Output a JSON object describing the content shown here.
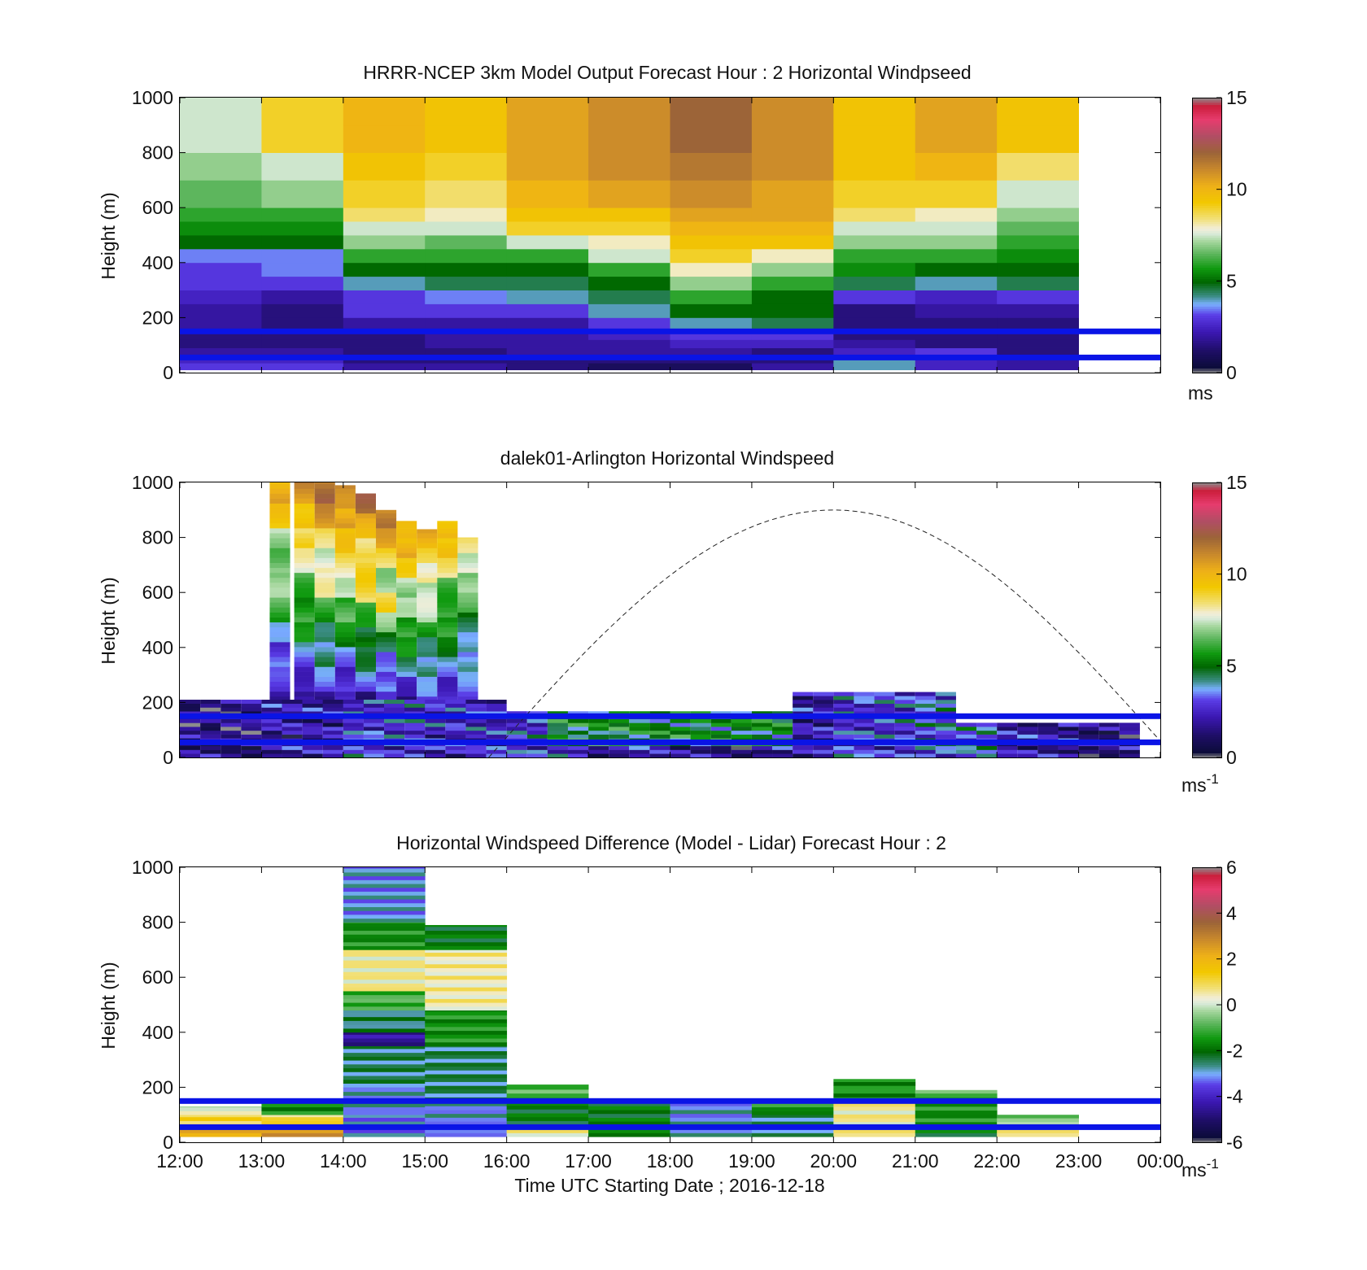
{
  "chart_data": [
    {
      "type": "heatmap",
      "title": "HRRR-NCEP 3km Model Output   Forecast Hour : 2 Horizontal Windpseed",
      "ylabel": "Height (m)",
      "ylim": [
        0,
        1000
      ],
      "yticks": [
        "0",
        "200",
        "400",
        "600",
        "800",
        "1000"
      ],
      "xlim": [
        12,
        24
      ],
      "colorbar": {
        "ticks": [
          "0",
          "5",
          "10",
          "15"
        ],
        "unit_base": "ms",
        "unit_exp": "",
        "range": [
          0,
          15
        ]
      },
      "reference_lines_m": [
        150,
        55
      ],
      "reference_line_color": "#0a14e6",
      "time_start_hours": [
        12,
        13,
        14,
        15,
        16,
        17,
        18,
        19,
        20,
        21,
        22
      ],
      "height_levels_m": [
        10,
        35,
        60,
        90,
        120,
        160,
        200,
        250,
        300,
        350,
        400,
        450,
        500,
        550,
        600,
        700,
        800,
        900,
        1000
      ],
      "windspeed": [
        [
          3,
          2.5,
          2,
          1.5,
          1.5,
          2,
          2,
          2.5,
          3,
          3,
          3.5,
          5,
          5.5,
          6,
          6.5,
          7,
          7.5,
          7.5
        ],
        [
          3,
          2.5,
          2,
          1.5,
          1.5,
          1.5,
          1.5,
          2,
          3,
          3.5,
          3.5,
          5,
          5.5,
          6,
          7,
          7.5,
          9,
          9
        ],
        [
          2,
          1.5,
          1.5,
          1.5,
          1.5,
          2,
          3,
          3,
          4,
          5,
          6,
          7,
          7.5,
          8.5,
          9,
          9.5,
          10,
          10
        ],
        [
          2,
          1.5,
          1.5,
          2,
          2,
          2,
          3,
          3.5,
          4.5,
          5,
          6,
          6.5,
          7.5,
          8,
          8.5,
          9,
          9.5,
          9.5
        ],
        [
          1.5,
          1.5,
          2,
          2,
          2,
          2,
          3,
          4,
          4.5,
          5,
          6,
          7.5,
          9,
          9.5,
          10,
          10.5,
          10.5,
          10.5
        ],
        [
          1,
          1.5,
          2,
          2,
          2.5,
          3,
          4,
          4.5,
          5,
          6,
          7.5,
          8,
          9,
          9.5,
          10.5,
          11,
          11,
          11
        ],
        [
          1,
          1.5,
          2,
          2.5,
          3,
          4,
          5,
          6,
          7,
          8,
          9,
          9.5,
          10,
          10.5,
          11,
          11.5,
          12,
          12
        ],
        [
          2,
          1.5,
          1.5,
          2.5,
          3,
          4.5,
          5,
          5,
          6,
          7,
          8,
          9.5,
          10,
          10.5,
          10.5,
          11,
          11,
          11
        ],
        [
          4,
          4,
          2.5,
          2,
          1.5,
          1.5,
          1.5,
          3,
          4.5,
          5.5,
          6,
          7,
          7.5,
          8.5,
          9,
          9.5,
          9.5,
          9.5
        ],
        [
          2.5,
          2.5,
          3,
          1.5,
          1.5,
          1.5,
          2,
          2.5,
          4,
          5,
          6,
          7,
          7.5,
          8,
          9,
          10,
          10.5,
          10.5
        ],
        [
          2,
          2,
          1.5,
          1.5,
          1.5,
          1.5,
          2,
          3,
          4.5,
          5,
          5.5,
          6,
          6.5,
          7,
          7.5,
          8.5,
          9.5,
          9.5
        ]
      ]
    },
    {
      "type": "heatmap",
      "title": "dalek01-Arlington  Horizontal Windspeed",
      "ylabel": "Height (m)",
      "ylim": [
        0,
        1000
      ],
      "yticks": [
        "0",
        "200",
        "400",
        "600",
        "800",
        "1000"
      ],
      "xlim": [
        12,
        24
      ],
      "colorbar": {
        "ticks": [
          "0",
          "5",
          "10",
          "15"
        ],
        "unit_base": "ms",
        "unit_exp": "-1",
        "range": [
          0,
          15
        ]
      },
      "reference_lines_m": [
        150,
        55
      ],
      "reference_line_color": "#0a14e6",
      "curve": {
        "style": "dashed",
        "x_hours": [
          15.78,
          20,
          24
        ],
        "y_m": [
          0,
          900,
          60
        ],
        "peak_hour": 20,
        "peak_m": 900
      },
      "columns": [
        {
          "t": 13.1,
          "top": 1000,
          "speed_profile": [
            2,
            2.5,
            3,
            4.5,
            6,
            6.5,
            7,
            7.5,
            9,
            10
          ]
        },
        {
          "t": 13.4,
          "top": 1000,
          "speed_profile": [
            2,
            3,
            3.5,
            5,
            6,
            6.5,
            7.5,
            8.5,
            10,
            11
          ]
        },
        {
          "t": 13.65,
          "top": 1000,
          "speed_profile": [
            2,
            3,
            4,
            5,
            6,
            7.5,
            8,
            9,
            10.5,
            11.5
          ]
        },
        {
          "t": 13.9,
          "top": 990,
          "speed_profile": [
            2,
            3,
            4,
            5,
            6,
            8,
            8.5,
            9,
            10.5,
            11.5
          ]
        },
        {
          "t": 14.15,
          "top": 960,
          "speed_profile": [
            2,
            3.5,
            4,
            5,
            6.5,
            8.5,
            8.5,
            9,
            10.5,
            11.5
          ]
        },
        {
          "t": 14.4,
          "top": 900,
          "speed_profile": [
            2,
            3,
            4,
            5,
            6.5,
            8.5,
            7.5,
            9,
            10,
            11
          ]
        },
        {
          "t": 14.65,
          "top": 860,
          "speed_profile": [
            2,
            3,
            4,
            5,
            6,
            8,
            7,
            8.5,
            10,
            10.5
          ]
        },
        {
          "t": 14.9,
          "top": 830,
          "speed_profile": [
            2.5,
            3,
            4,
            5,
            6,
            7,
            7,
            8.5,
            9.5,
            10
          ]
        },
        {
          "t": 15.15,
          "top": 860,
          "speed_profile": [
            3,
            3,
            4,
            4.5,
            5.5,
            6.5,
            6.5,
            8,
            9,
            10
          ]
        },
        {
          "t": 15.4,
          "top": 800,
          "speed_profile": [
            3,
            3,
            3.5,
            4.5,
            5,
            6,
            6.5,
            8,
            9
          ]
        }
      ],
      "near_surface_speed_ms": [
        1.5,
        2,
        3,
        2.5,
        3,
        2,
        1.5,
        2,
        3,
        3.5,
        2,
        1.5
      ]
    },
    {
      "type": "heatmap",
      "title": "Horizontal Windspeed Difference (Model - Lidar) Forecast Hour : 2",
      "ylabel": "Height (m)",
      "xlabel": "Time UTC  Starting Date ; 2016-12-18",
      "ylim": [
        0,
        1000
      ],
      "yticks": [
        "0",
        "200",
        "400",
        "600",
        "800",
        "1000"
      ],
      "xlim": [
        12,
        24
      ],
      "xticks": [
        "12:00",
        "13:00",
        "14:00",
        "15:00",
        "16:00",
        "17:00",
        "18:00",
        "19:00",
        "20:00",
        "21:00",
        "22:00",
        "23:00",
        "00:00"
      ],
      "colorbar": {
        "ticks": [
          "-6",
          "-4",
          "-2",
          "0",
          "2",
          "4",
          "6"
        ],
        "unit_base": "ms",
        "unit_exp": "-1",
        "range": [
          -6,
          6
        ]
      },
      "reference_lines_m": [
        150,
        55
      ],
      "reference_line_color": "#0a14e6",
      "columns": [
        {
          "t": 12,
          "top": 130,
          "bands": [
            [
              20,
              50,
              2
            ],
            [
              50,
              100,
              1
            ],
            [
              100,
              130,
              0
            ]
          ]
        },
        {
          "t": 13,
          "top": 150,
          "bands": [
            [
              20,
              50,
              2.5
            ],
            [
              50,
              100,
              1
            ],
            [
              100,
              150,
              -1.5
            ]
          ]
        },
        {
          "t": 14,
          "top": 1000,
          "bands": [
            [
              20,
              100,
              -3
            ],
            [
              100,
              200,
              -3
            ],
            [
              200,
              350,
              -2.5
            ],
            [
              350,
              400,
              -4.5
            ],
            [
              400,
              480,
              -2.5
            ],
            [
              480,
              550,
              -1
            ],
            [
              550,
              700,
              0.5
            ],
            [
              700,
              800,
              -1.5
            ],
            [
              800,
              1000,
              -3
            ]
          ]
        },
        {
          "t": 15,
          "top": 790,
          "bands": [
            [
              20,
              150,
              -3
            ],
            [
              150,
              350,
              -2.5
            ],
            [
              350,
              480,
              -1.5
            ],
            [
              480,
              700,
              0.5
            ],
            [
              700,
              790,
              -2
            ]
          ]
        },
        {
          "t": 16,
          "top": 210,
          "bands": [
            [
              20,
              50,
              0.5
            ],
            [
              50,
              150,
              -2
            ],
            [
              150,
              210,
              -1
            ]
          ]
        },
        {
          "t": 17,
          "top": 150,
          "bands": [
            [
              20,
              150,
              -2
            ]
          ]
        },
        {
          "t": 18,
          "top": 150,
          "bands": [
            [
              20,
              150,
              -3
            ]
          ]
        },
        {
          "t": 19,
          "top": 150,
          "bands": [
            [
              20,
              100,
              -2.5
            ],
            [
              100,
              150,
              -1.5
            ]
          ]
        },
        {
          "t": 20,
          "top": 230,
          "bands": [
            [
              20,
              60,
              1
            ],
            [
              60,
              150,
              0.5
            ],
            [
              150,
              230,
              -1.5
            ]
          ]
        },
        {
          "t": 21,
          "top": 190,
          "bands": [
            [
              20,
              60,
              -2
            ],
            [
              60,
              150,
              -1.5
            ],
            [
              150,
              190,
              -1
            ]
          ]
        },
        {
          "t": 22,
          "top": 100,
          "bands": [
            [
              20,
              60,
              0.5
            ],
            [
              60,
              100,
              -0.5
            ]
          ]
        }
      ]
    }
  ]
}
